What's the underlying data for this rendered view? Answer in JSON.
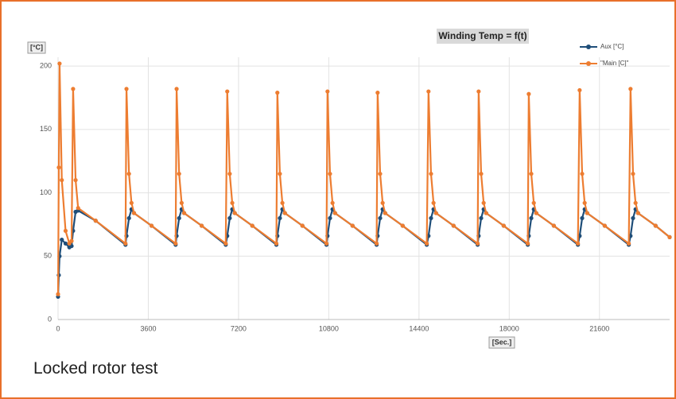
{
  "chart_data": {
    "type": "line",
    "title": "Winding Temp = f(t)",
    "y_label": "[°C]",
    "x_label": "[Sec.]",
    "caption": "Locked rotor test",
    "x": [
      0,
      30,
      60,
      150,
      300,
      450,
      540,
      600,
      700,
      800,
      1500,
      2690,
      2730,
      2830,
      2930,
      3030,
      3730,
      4690,
      4730,
      4830,
      4930,
      5030,
      5730,
      6690,
      6750,
      6850,
      6950,
      7050,
      7750,
      8710,
      8750,
      8850,
      8950,
      9050,
      9750,
      10710,
      10750,
      10850,
      10950,
      11050,
      11750,
      12710,
      12750,
      12850,
      12950,
      13050,
      13750,
      14710,
      14780,
      14880,
      14980,
      15080,
      15780,
      16740,
      16780,
      16880,
      16980,
      17080,
      17780,
      18740,
      18780,
      18880,
      18980,
      19080,
      19780,
      20740,
      20810,
      20910,
      21010,
      21110,
      21810,
      22770,
      22840,
      22940,
      23040,
      23140,
      23840,
      24400
    ],
    "series": [
      {
        "name": "Aux [°C]",
        "color": "#1f4e79",
        "values": [
          18,
          35,
          50,
          63,
          60,
          57,
          58,
          70,
          85,
          86,
          78,
          59,
          66,
          80,
          87,
          84,
          74,
          59,
          66,
          80,
          87,
          84,
          74,
          59,
          66,
          80,
          87,
          84,
          74,
          59,
          66,
          80,
          87,
          84,
          74,
          59,
          66,
          80,
          87,
          84,
          74,
          59,
          66,
          80,
          87,
          84,
          74,
          59,
          66,
          80,
          87,
          84,
          74,
          59,
          66,
          80,
          87,
          84,
          74,
          59,
          66,
          80,
          87,
          84,
          74,
          59,
          66,
          80,
          87,
          84,
          74,
          59,
          66,
          80,
          87,
          84,
          74,
          65
        ]
      },
      {
        "name": "\"Main [C]\"",
        "color": "#ed7d31",
        "values": [
          20,
          120,
          202,
          110,
          70,
          60,
          62,
          182,
          110,
          88,
          78,
          60,
          182,
          115,
          92,
          84,
          74,
          60,
          182,
          115,
          92,
          84,
          74,
          60,
          180,
          115,
          92,
          84,
          74,
          60,
          179,
          115,
          92,
          84,
          74,
          60,
          180,
          115,
          92,
          84,
          74,
          60,
          179,
          115,
          92,
          84,
          74,
          60,
          180,
          115,
          92,
          84,
          74,
          60,
          180,
          115,
          92,
          84,
          74,
          60,
          178,
          115,
          92,
          84,
          74,
          60,
          181,
          115,
          92,
          84,
          74,
          60,
          182,
          115,
          92,
          84,
          74,
          65
        ]
      }
    ],
    "xlim": [
      0,
      24400
    ],
    "ylim": [
      0,
      207
    ],
    "xticks": [
      0,
      3600,
      7200,
      10800,
      14400,
      18000,
      21600
    ],
    "yticks": [
      0,
      50,
      100,
      150,
      200
    ],
    "grid": true
  }
}
